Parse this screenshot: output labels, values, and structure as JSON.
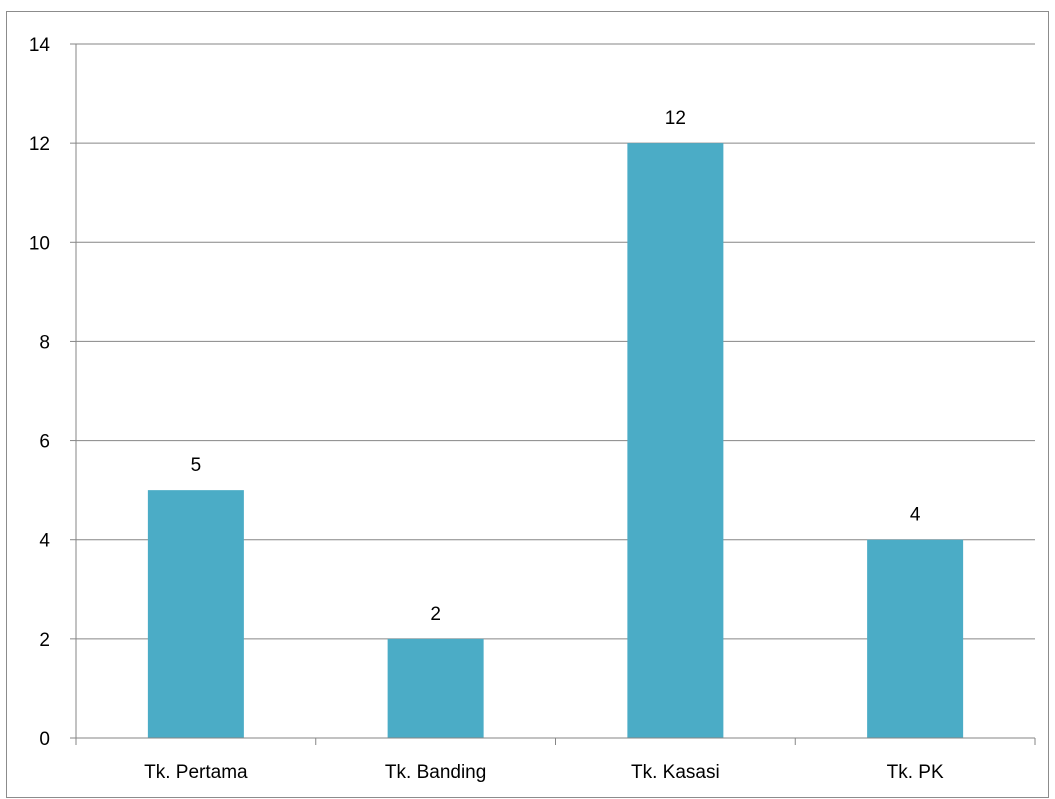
{
  "chart_data": {
    "type": "bar",
    "title": "",
    "xlabel": "",
    "ylabel": "",
    "categories": [
      "Tk. Pertama",
      "Tk. Banding",
      "Tk. Kasasi",
      "Tk. PK"
    ],
    "values": [
      5,
      2,
      12,
      4
    ],
    "data_labels": [
      "5",
      "2",
      "12",
      "4"
    ],
    "ylim": [
      0,
      14
    ],
    "yticks": [
      0,
      2,
      4,
      6,
      8,
      10,
      12,
      14
    ],
    "ytick_labels": [
      "0",
      "2",
      "4",
      "6",
      "8",
      "10",
      "12",
      "14"
    ],
    "grid": true,
    "legend": "none",
    "bar_color": "#4BACC6",
    "grid_color": "#868686"
  }
}
